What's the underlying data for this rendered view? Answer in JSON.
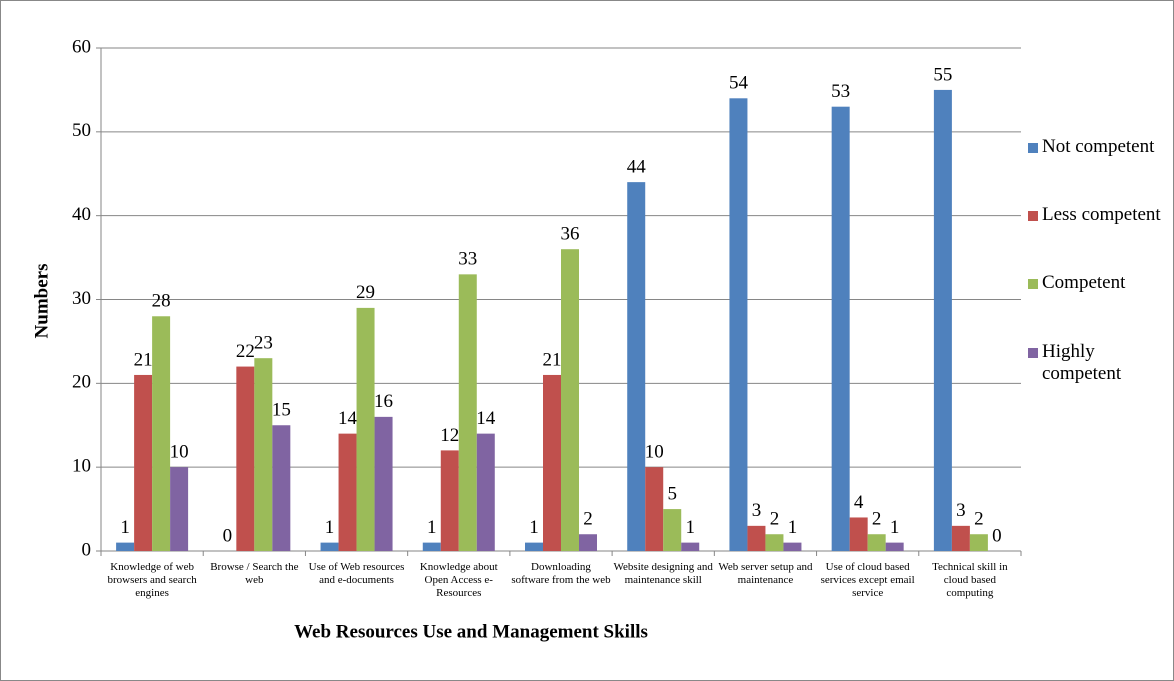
{
  "chart_data": {
    "type": "bar",
    "x_label": "Web Resources Use and Management Skills",
    "y_label": "Numbers",
    "categories": [
      "Knowledge of web browsers and search engines",
      "Browse / Search the web",
      "Use of Web resources and e-documents",
      "Knowledge about Open Access e-Resources",
      "Downloading software from the web",
      "Website designing and maintenance skill",
      "Web server setup and maintenance",
      "Use of cloud based services except email service",
      "Technical skill in cloud based computing"
    ],
    "series": [
      {
        "name": "Not competent",
        "color": "#4f81bd",
        "values": [
          1,
          0,
          1,
          1,
          1,
          44,
          54,
          53,
          55
        ]
      },
      {
        "name": "Less competent",
        "color": "#c0504d",
        "values": [
          21,
          22,
          14,
          12,
          21,
          10,
          3,
          4,
          3
        ]
      },
      {
        "name": "Competent",
        "color": "#9bbb59",
        "values": [
          28,
          23,
          29,
          33,
          36,
          5,
          2,
          2,
          2
        ]
      },
      {
        "name": "Highly competent",
        "color": "#8064a2",
        "values": [
          10,
          15,
          16,
          14,
          2,
          1,
          1,
          1,
          0
        ]
      }
    ],
    "ylim": [
      0,
      60
    ],
    "yticks": [
      0,
      10,
      20,
      30,
      40,
      50,
      60
    ],
    "grid": true,
    "legend": "right"
  }
}
